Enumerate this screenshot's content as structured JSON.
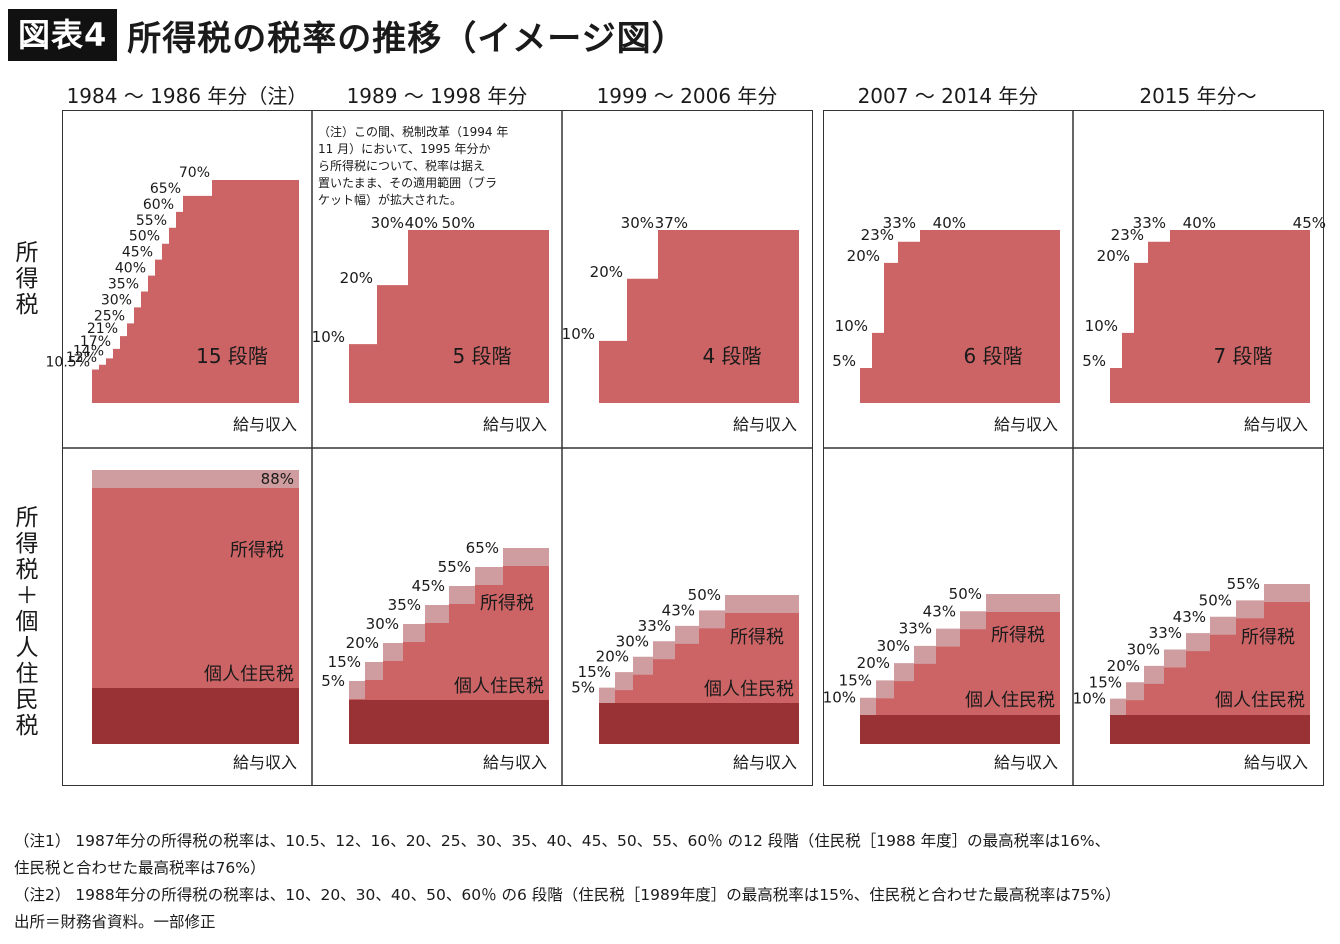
{
  "header": {
    "label": "図表4",
    "title": "所得税の税率の推移（イメージ図）"
  },
  "columns": [
    "1984 ～ 1986 年分（注）",
    "1989 ～ 1998 年分",
    "1999 ～ 2006 年分",
    "2007 ～ 2014 年分",
    "2015 年分～"
  ],
  "rows": [
    "所得税",
    "所得税＋個人住民税"
  ],
  "note_in_panel": [
    "（注）この間、税制改革（1994 年",
    "11 月）において、1995 年分か",
    "ら所得税について、税率は据え",
    "置いたまま、その適用範囲（ブラ",
    "ケット幅）が拡大された。"
  ],
  "footnotes": [
    "（注1） 1987年分の所得税の税率は、10.5、12、16、20、25、30、35、40、45、50、55、60％ の12 段階（住民税［1988 年度］の最高税率は16%、",
    "住民税と合わせた最高税率は76%）",
    "（注2） 1988年分の所得税の税率は、10、20、30、40、50、60％ の6 段階（住民税［1989年度］の最高税率は15%、住民税と合わせた最高税率は75%）",
    "出所＝財務省資料。一部修正"
  ],
  "colors": {
    "income_tax": "#cc6466",
    "combined_light": "#cf9c9f",
    "resident_tax": "#993234",
    "border": "#333333"
  },
  "chart_data": [
    {
      "type": "area",
      "period": "1984 ～ 1986 年分（注）",
      "row": "所得税",
      "xlabel": "給与収入",
      "steps_label": "15 段階",
      "income_tax_rates": [
        "10.5%",
        "12%",
        "14%",
        "17%",
        "21%",
        "25%",
        "30%",
        "35%",
        "40%",
        "45%",
        "50%",
        "55%",
        "60%",
        "65%",
        "70%"
      ]
    },
    {
      "type": "area",
      "period": "1989 ～ 1998 年分",
      "row": "所得税",
      "xlabel": "給与収入",
      "steps_label": "5 段階",
      "income_tax_rates": [
        "10%",
        "20%",
        "30%",
        "40%",
        "50%"
      ]
    },
    {
      "type": "area",
      "period": "1999 ～ 2006 年分",
      "row": "所得税",
      "xlabel": "給与収入",
      "steps_label": "4 段階",
      "income_tax_rates": [
        "10%",
        "20%",
        "30%",
        "37%"
      ]
    },
    {
      "type": "area",
      "period": "2007 ～ 2014 年分",
      "row": "所得税",
      "xlabel": "給与収入",
      "steps_label": "6 段階",
      "income_tax_rates": [
        "5%",
        "10%",
        "20%",
        "23%",
        "33%",
        "40%"
      ]
    },
    {
      "type": "area",
      "period": "2015 年分～",
      "row": "所得税",
      "xlabel": "給与収入",
      "steps_label": "7 段階",
      "income_tax_rates": [
        "5%",
        "10%",
        "20%",
        "23%",
        "33%",
        "40%",
        "45%"
      ]
    },
    {
      "type": "area",
      "period": "1984 ～ 1986 年分（注）",
      "row": "所得税＋個人住民税",
      "xlabel": "給与収入",
      "series": [
        {
          "name": "所得税"
        },
        {
          "name": "個人住民税"
        }
      ],
      "combined_rate_labels": [
        "88%"
      ]
    },
    {
      "type": "area",
      "period": "1989 ～ 1998 年分",
      "row": "所得税＋個人住民税",
      "xlabel": "給与収入",
      "series": [
        {
          "name": "所得税"
        },
        {
          "name": "個人住民税"
        }
      ],
      "combined_rate_labels": [
        "5%",
        "15%",
        "20%",
        "30%",
        "35%",
        "45%",
        "55%",
        "65%"
      ]
    },
    {
      "type": "area",
      "period": "1999 ～ 2006 年分",
      "row": "所得税＋個人住民税",
      "xlabel": "給与収入",
      "series": [
        {
          "name": "所得税"
        },
        {
          "name": "個人住民税"
        }
      ],
      "combined_rate_labels": [
        "5%",
        "15%",
        "20%",
        "30%",
        "33%",
        "43%",
        "50%"
      ]
    },
    {
      "type": "area",
      "period": "2007 ～ 2014 年分",
      "row": "所得税＋個人住民税",
      "xlabel": "給与収入",
      "series": [
        {
          "name": "所得税"
        },
        {
          "name": "個人住民税"
        }
      ],
      "combined_rate_labels": [
        "10%",
        "15%",
        "20%",
        "30%",
        "33%",
        "43%",
        "50%"
      ]
    },
    {
      "type": "area",
      "period": "2015 年分～",
      "row": "所得税＋個人住民税",
      "xlabel": "給与収入",
      "series": [
        {
          "name": "所得税"
        },
        {
          "name": "個人住民税"
        }
      ],
      "combined_rate_labels": [
        "10%",
        "15%",
        "20%",
        "30%",
        "33%",
        "43%",
        "50%",
        "55%"
      ]
    }
  ]
}
